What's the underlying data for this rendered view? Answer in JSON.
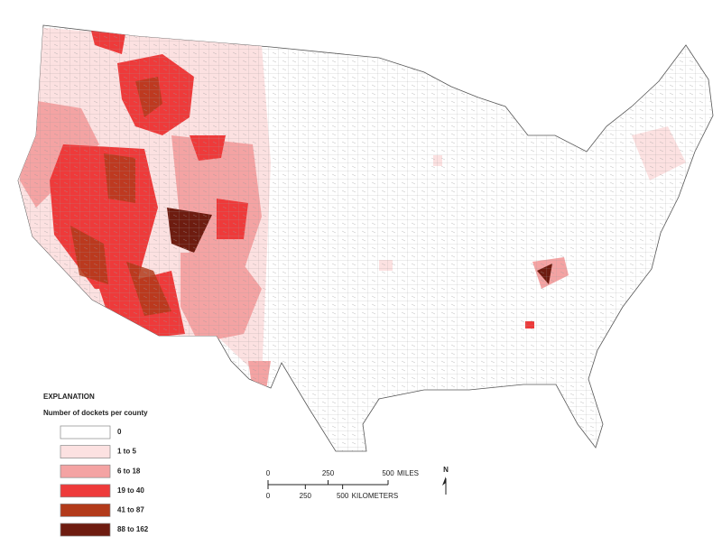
{
  "legend": {
    "title": "EXPLANATION",
    "subtitle": "Number of dockets per county",
    "items": [
      {
        "label": "0",
        "color": "#ffffff"
      },
      {
        "label": "1 to 5",
        "color": "#fce1e1"
      },
      {
        "label": "6 to 18",
        "color": "#f4a3a3"
      },
      {
        "label": "19 to 40",
        "color": "#ee3a3a"
      },
      {
        "label": "41 to 87",
        "color": "#b23a1a"
      },
      {
        "label": "88 to 162",
        "color": "#6e1c10"
      }
    ]
  },
  "scale_bar": {
    "miles": {
      "ticks": [
        0,
        250,
        500
      ],
      "unit": "MILES"
    },
    "kilometers": {
      "ticks": [
        0,
        250,
        500
      ],
      "unit": "KILOMETERS"
    }
  },
  "north_arrow": "N"
}
